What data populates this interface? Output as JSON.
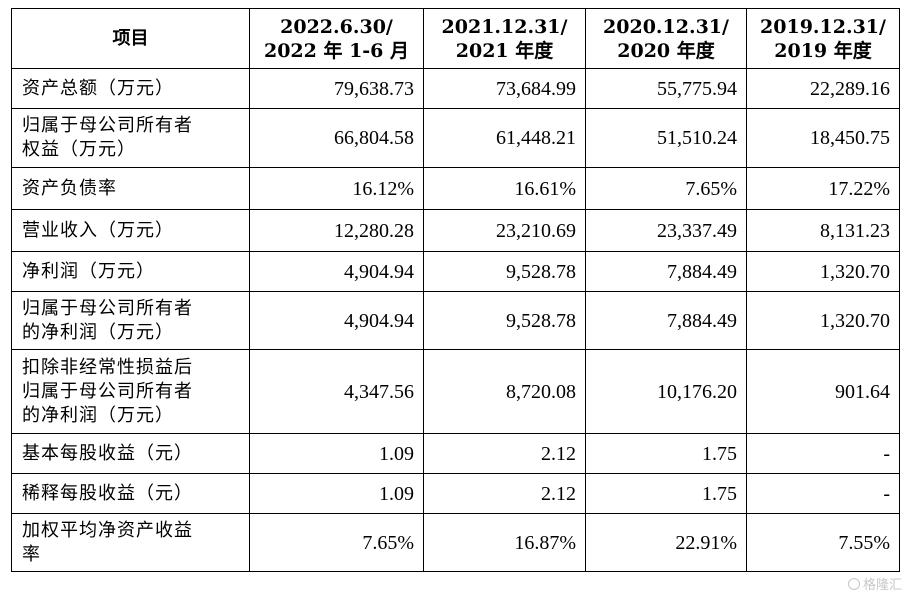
{
  "table": {
    "header": {
      "item": "项目",
      "periods": [
        [
          "2022.6.30/",
          "2022 年 1-6 月"
        ],
        [
          "2021.12.31/",
          "2021 年度"
        ],
        [
          "2020.12.31/",
          "2020 年度"
        ],
        [
          "2019.12.31/",
          "2019 年度"
        ]
      ]
    },
    "rows": [
      {
        "label": [
          "资产总额（万元）"
        ],
        "values": [
          "79,638.73",
          "73,684.99",
          "55,775.94",
          "22,289.16"
        ]
      },
      {
        "label": [
          "归属于母公司所有者",
          "权益（万元）"
        ],
        "values": [
          "66,804.58",
          "61,448.21",
          "51,510.24",
          "18,450.75"
        ]
      },
      {
        "label": [
          "资产负债率"
        ],
        "values": [
          "16.12%",
          "16.61%",
          "7.65%",
          "17.22%"
        ]
      },
      {
        "label": [
          "营业收入（万元）"
        ],
        "values": [
          "12,280.28",
          "23,210.69",
          "23,337.49",
          "8,131.23"
        ]
      },
      {
        "label": [
          "净利润（万元）"
        ],
        "values": [
          "4,904.94",
          "9,528.78",
          "7,884.49",
          "1,320.70"
        ]
      },
      {
        "label": [
          "归属于母公司所有者",
          "的净利润（万元）"
        ],
        "values": [
          "4,904.94",
          "9,528.78",
          "7,884.49",
          "1,320.70"
        ]
      },
      {
        "label": [
          "扣除非经常性损益后",
          "归属于母公司所有者",
          "的净利润（万元）"
        ],
        "values": [
          "4,347.56",
          "8,720.08",
          "10,176.20",
          "901.64"
        ]
      },
      {
        "label": [
          "基本每股收益（元）"
        ],
        "values": [
          "1.09",
          "2.12",
          "1.75",
          "-"
        ]
      },
      {
        "label": [
          "稀释每股收益（元）"
        ],
        "values": [
          "1.09",
          "2.12",
          "1.75",
          "-"
        ]
      },
      {
        "label": [
          "加权平均净资产收益",
          "率"
        ],
        "values": [
          "7.65%",
          "16.87%",
          "22.91%",
          "7.55%"
        ]
      }
    ]
  },
  "watermark": {
    "text": "格隆汇"
  }
}
